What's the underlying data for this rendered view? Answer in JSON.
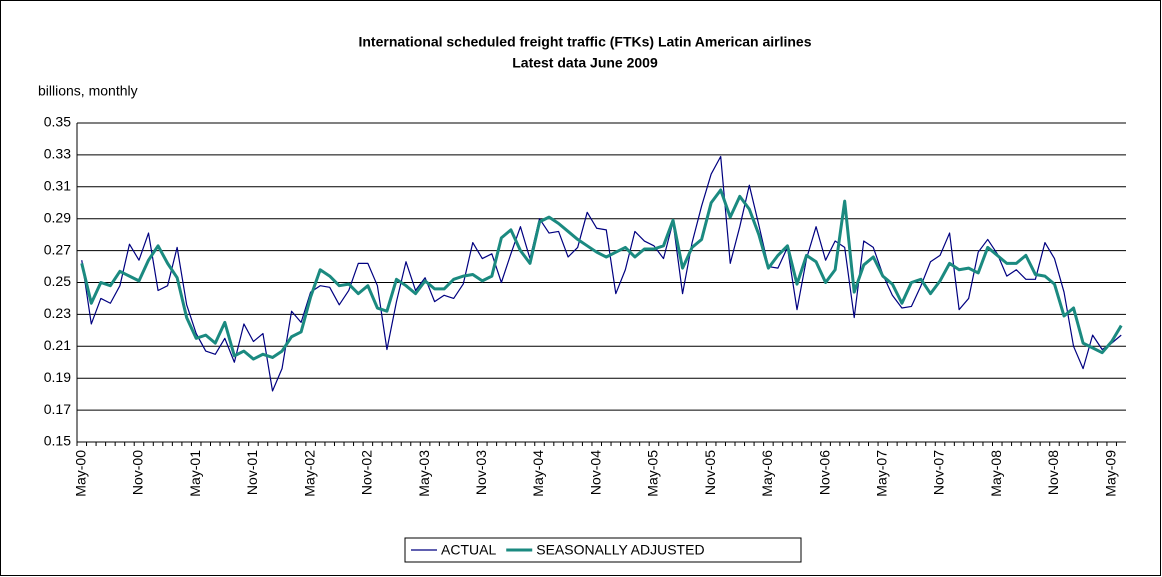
{
  "chart_data": {
    "type": "line",
    "title": "International scheduled freight traffic (FTKs) Latin American airlines",
    "subtitle": "Latest data June 2009",
    "y_label": "billions, monthly",
    "categories": [
      "May-00",
      null,
      null,
      null,
      null,
      null,
      "Nov-00",
      null,
      null,
      null,
      null,
      null,
      "May-01",
      null,
      null,
      null,
      null,
      null,
      "Nov-01",
      null,
      null,
      null,
      null,
      null,
      "May-02",
      null,
      null,
      null,
      null,
      null,
      "Nov-02",
      null,
      null,
      null,
      null,
      null,
      "May-03",
      null,
      null,
      null,
      null,
      null,
      "Nov-03",
      null,
      null,
      null,
      null,
      null,
      "May-04",
      null,
      null,
      null,
      null,
      null,
      "Nov-04",
      null,
      null,
      null,
      null,
      null,
      "May-05",
      null,
      null,
      null,
      null,
      null,
      "Nov-05",
      null,
      null,
      null,
      null,
      null,
      "May-06",
      null,
      null,
      null,
      null,
      null,
      "Nov-06",
      null,
      null,
      null,
      null,
      null,
      "May-07",
      null,
      null,
      null,
      null,
      null,
      "Nov-07",
      null,
      null,
      null,
      null,
      null,
      "May-08",
      null,
      null,
      null,
      null,
      null,
      "Nov-08",
      null,
      null,
      null,
      null,
      null,
      "May-09",
      null
    ],
    "series": [
      {
        "name": "ACTUAL",
        "color": "#000080",
        "width": 1.2,
        "values": [
          0.264,
          0.224,
          0.24,
          0.237,
          0.248,
          0.274,
          0.264,
          0.281,
          0.245,
          0.248,
          0.272,
          0.236,
          0.218,
          0.207,
          0.205,
          0.215,
          0.2,
          0.224,
          0.213,
          0.218,
          0.182,
          0.196,
          0.232,
          0.225,
          0.244,
          0.248,
          0.247,
          0.236,
          0.245,
          0.262,
          0.262,
          0.248,
          0.208,
          0.238,
          0.263,
          0.245,
          0.253,
          0.238,
          0.242,
          0.24,
          0.249,
          0.275,
          0.265,
          0.268,
          0.25,
          0.268,
          0.285,
          0.265,
          0.29,
          0.281,
          0.282,
          0.266,
          0.272,
          0.294,
          0.284,
          0.283,
          0.243,
          0.258,
          0.282,
          0.276,
          0.273,
          0.265,
          0.288,
          0.243,
          0.275,
          0.298,
          0.318,
          0.329,
          0.262,
          0.285,
          0.311,
          0.286,
          0.26,
          0.259,
          0.272,
          0.233,
          0.265,
          0.285,
          0.264,
          0.276,
          0.272,
          0.228,
          0.276,
          0.272,
          0.255,
          0.242,
          0.234,
          0.235,
          0.248,
          0.263,
          0.267,
          0.281,
          0.233,
          0.24,
          0.269,
          0.277,
          0.268,
          0.254,
          0.258,
          0.252,
          0.252,
          0.275,
          0.265,
          0.244,
          0.21,
          0.196,
          0.217,
          0.208,
          0.212,
          0.217
        ]
      },
      {
        "name": "SEASONALLY ADJUSTED",
        "color": "#1b8a80",
        "width": 3,
        "values": [
          0.262,
          0.237,
          0.25,
          0.248,
          0.257,
          0.254,
          0.251,
          0.264,
          0.273,
          0.262,
          0.253,
          0.228,
          0.215,
          0.217,
          0.212,
          0.225,
          0.204,
          0.207,
          0.202,
          0.205,
          0.203,
          0.207,
          0.216,
          0.219,
          0.241,
          0.258,
          0.254,
          0.248,
          0.249,
          0.243,
          0.248,
          0.234,
          0.232,
          0.252,
          0.248,
          0.243,
          0.251,
          0.246,
          0.246,
          0.252,
          0.254,
          0.255,
          0.251,
          0.254,
          0.278,
          0.283,
          0.27,
          0.262,
          0.288,
          0.291,
          0.287,
          0.282,
          0.277,
          0.273,
          0.269,
          0.266,
          0.269,
          0.272,
          0.266,
          0.271,
          0.271,
          0.273,
          0.289,
          0.259,
          0.272,
          0.277,
          0.3,
          0.308,
          0.291,
          0.304,
          0.296,
          0.28,
          0.259,
          0.267,
          0.273,
          0.249,
          0.267,
          0.263,
          0.25,
          0.258,
          0.301,
          0.244,
          0.261,
          0.266,
          0.254,
          0.249,
          0.237,
          0.25,
          0.252,
          0.243,
          0.251,
          0.262,
          0.258,
          0.259,
          0.256,
          0.272,
          0.267,
          0.262,
          0.262,
          0.267,
          0.255,
          0.254,
          0.249,
          0.229,
          0.234,
          0.212,
          0.209,
          0.206,
          0.213,
          0.223
        ]
      }
    ],
    "ylim": [
      0.15,
      0.35
    ],
    "yticks": [
      0.15,
      0.17,
      0.19,
      0.21,
      0.23,
      0.25,
      0.27,
      0.29,
      0.31,
      0.33,
      0.35
    ],
    "grid": true,
    "legend": "bottom"
  }
}
